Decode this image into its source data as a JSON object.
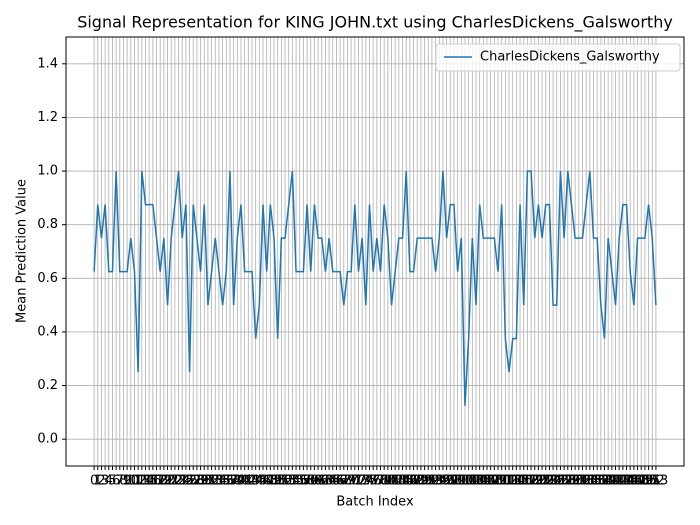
{
  "chart_data": {
    "type": "line",
    "title": "Signal Representation for KING JOHN.txt using CharlesDickens_Galsworthy",
    "xlabel": "Batch Index",
    "ylabel": "Mean Prediction Value",
    "x": [
      0,
      1,
      2,
      3,
      4,
      5,
      6,
      7,
      8,
      9,
      10,
      11,
      12,
      13,
      14,
      15,
      16,
      17,
      18,
      19,
      20,
      21,
      22,
      23,
      24,
      25,
      26,
      27,
      28,
      29,
      30,
      31,
      32,
      33,
      34,
      35,
      36,
      37,
      38,
      39,
      40,
      41,
      42,
      43,
      44,
      45,
      46,
      47,
      48,
      49,
      50,
      51,
      52,
      53,
      54,
      55,
      56,
      57,
      58,
      59,
      60,
      61,
      62,
      63,
      64,
      65,
      66,
      67,
      68,
      69,
      70,
      71,
      72,
      73,
      74,
      75,
      76,
      77,
      78,
      79,
      80,
      81,
      82,
      83,
      84,
      85,
      86,
      87,
      88,
      89,
      90,
      91,
      92,
      93,
      94,
      95,
      96,
      97,
      98,
      99,
      100,
      101,
      102,
      103,
      104,
      105,
      106,
      107,
      108,
      109,
      110,
      111,
      112,
      113,
      114,
      115,
      116,
      117,
      118,
      119,
      120,
      121,
      122,
      123,
      124,
      125,
      126,
      127,
      128,
      129,
      130,
      131,
      132,
      133,
      134,
      135,
      136,
      137,
      138,
      139,
      140,
      141,
      142,
      143,
      144,
      145,
      146,
      147,
      148,
      149,
      150,
      151,
      152,
      153
    ],
    "series": [
      {
        "name": "CharlesDickens_Galsworthy",
        "color": "#1f77b4",
        "values": [
          0.625,
          0.875,
          0.75,
          0.875,
          0.625,
          0.625,
          1.0,
          0.625,
          0.625,
          0.625,
          0.75,
          0.625,
          0.25,
          1.0,
          0.875,
          0.875,
          0.875,
          0.75,
          0.625,
          0.75,
          0.5,
          0.75,
          0.875,
          1.0,
          0.75,
          0.875,
          0.25,
          0.875,
          0.75,
          0.625,
          0.875,
          0.5,
          0.625,
          0.75,
          0.625,
          0.5,
          0.625,
          1.0,
          0.5,
          0.75,
          0.875,
          0.625,
          0.625,
          0.625,
          0.375,
          0.5,
          0.875,
          0.625,
          0.875,
          0.75,
          0.375,
          0.75,
          0.75,
          0.875,
          1.0,
          0.625,
          0.625,
          0.625,
          0.875,
          0.625,
          0.875,
          0.75,
          0.75,
          0.625,
          0.75,
          0.625,
          0.625,
          0.625,
          0.5,
          0.625,
          0.625,
          0.875,
          0.625,
          0.75,
          0.5,
          0.875,
          0.625,
          0.75,
          0.625,
          0.875,
          0.75,
          0.5,
          0.625,
          0.75,
          0.75,
          1.0,
          0.625,
          0.625,
          0.75,
          0.75,
          0.75,
          0.75,
          0.75,
          0.625,
          0.75,
          1.0,
          0.75,
          0.875,
          0.875,
          0.625,
          0.75,
          0.125,
          0.375,
          0.75,
          0.5,
          0.875,
          0.75,
          0.75,
          0.75,
          0.75,
          0.625,
          0.875,
          0.375,
          0.25,
          0.375,
          0.375,
          0.875,
          0.5,
          1.0,
          1.0,
          0.75,
          0.875,
          0.75,
          0.875,
          0.875,
          0.5,
          0.5,
          1.0,
          0.75,
          1.0,
          0.875,
          0.75,
          0.75,
          0.75,
          0.875,
          1.0,
          0.75,
          0.75,
          0.5,
          0.375,
          0.75,
          0.625,
          0.5,
          0.75,
          0.875,
          0.875,
          0.625,
          0.5,
          0.75,
          0.75,
          0.75,
          0.875,
          0.75,
          0.5
        ]
      }
    ],
    "xlim": [
      -7.65,
      160.65
    ],
    "ylim": [
      -0.1,
      1.5
    ],
    "yticks": [
      {
        "value": 0,
        "label": "0.0"
      },
      {
        "value": 0.2,
        "label": "0.2"
      },
      {
        "value": 0.4,
        "label": "0.4"
      },
      {
        "value": 0.6,
        "label": "0.6"
      },
      {
        "value": 0.8,
        "label": "0.8"
      },
      {
        "value": 1.0,
        "label": "1.0"
      },
      {
        "value": 1.2,
        "label": "1.2"
      },
      {
        "value": 1.4,
        "label": "1.4"
      }
    ],
    "grid": true,
    "legend": "upper right"
  }
}
